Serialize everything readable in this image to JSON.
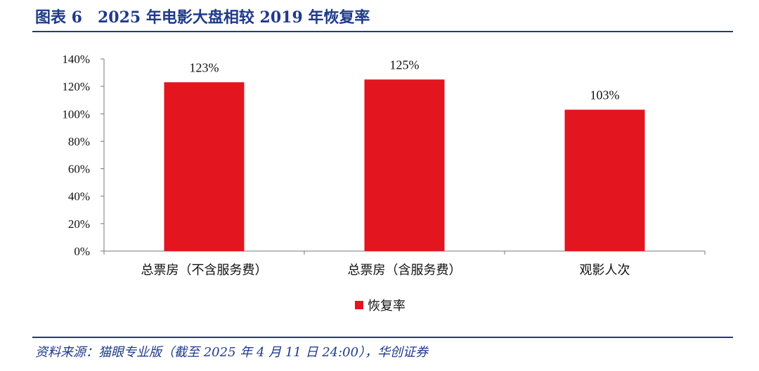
{
  "figure": {
    "title": "图表 6　2025 年电影大盘相较 2019 年恢复率",
    "source": "资料来源：猫眼专业版（截至 2025 年 4 月 11 日 24:00），华创证券"
  },
  "chart_data": {
    "type": "bar",
    "categories": [
      "总票房（不含服务费）",
      "总票房（含服务费）",
      "观影人次"
    ],
    "series": [
      {
        "name": "恢复率",
        "values": [
          123,
          125,
          103
        ],
        "labels": [
          "123%",
          "125%",
          "103%"
        ],
        "color": "#e3151e"
      }
    ],
    "ylim": [
      0,
      140
    ],
    "yticks": [
      0,
      20,
      40,
      60,
      80,
      100,
      120,
      140
    ],
    "ytick_labels": [
      "0%",
      "20%",
      "40%",
      "60%",
      "80%",
      "100%",
      "120%",
      "140%"
    ],
    "grid": false,
    "legend": "bottom-center"
  }
}
